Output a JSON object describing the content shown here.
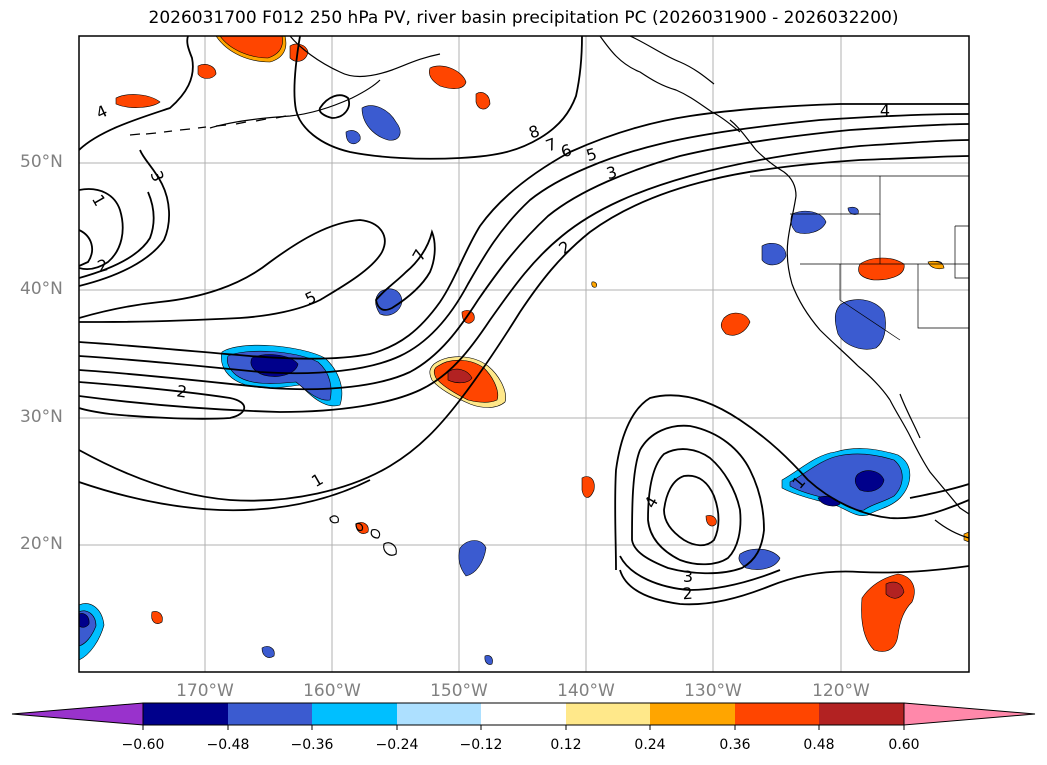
{
  "title": "2026031700 F012 250 hPa PV, river basin precipitation PC (2026031900 - 2026032200)",
  "lat_labels": [
    "50°N",
    "40°N",
    "30°N",
    "20°N"
  ],
  "lon_labels": [
    "170°W",
    "160°W",
    "150°W",
    "140°W",
    "130°W",
    "120°W"
  ],
  "contour_labels": [
    "4",
    "8",
    "3",
    "1",
    "2",
    "5",
    "7",
    "7",
    "6",
    "5",
    "3",
    "2",
    "2",
    "1",
    "4",
    "3",
    "2",
    "1",
    "4"
  ],
  "colorbar": {
    "ticks": [
      "−0.60",
      "−0.48",
      "−0.36",
      "−0.24",
      "−0.12",
      "0.12",
      "0.24",
      "0.36",
      "0.48",
      "0.60"
    ],
    "colors": [
      "#9932CC",
      "#00008B",
      "#3B5BD0",
      "#00BFFF",
      "#ADE0FF",
      "#FFFFFF",
      "#FFE88A",
      "#FFA500",
      "#FF4500",
      "#B22222",
      "#FF88AA"
    ]
  }
}
